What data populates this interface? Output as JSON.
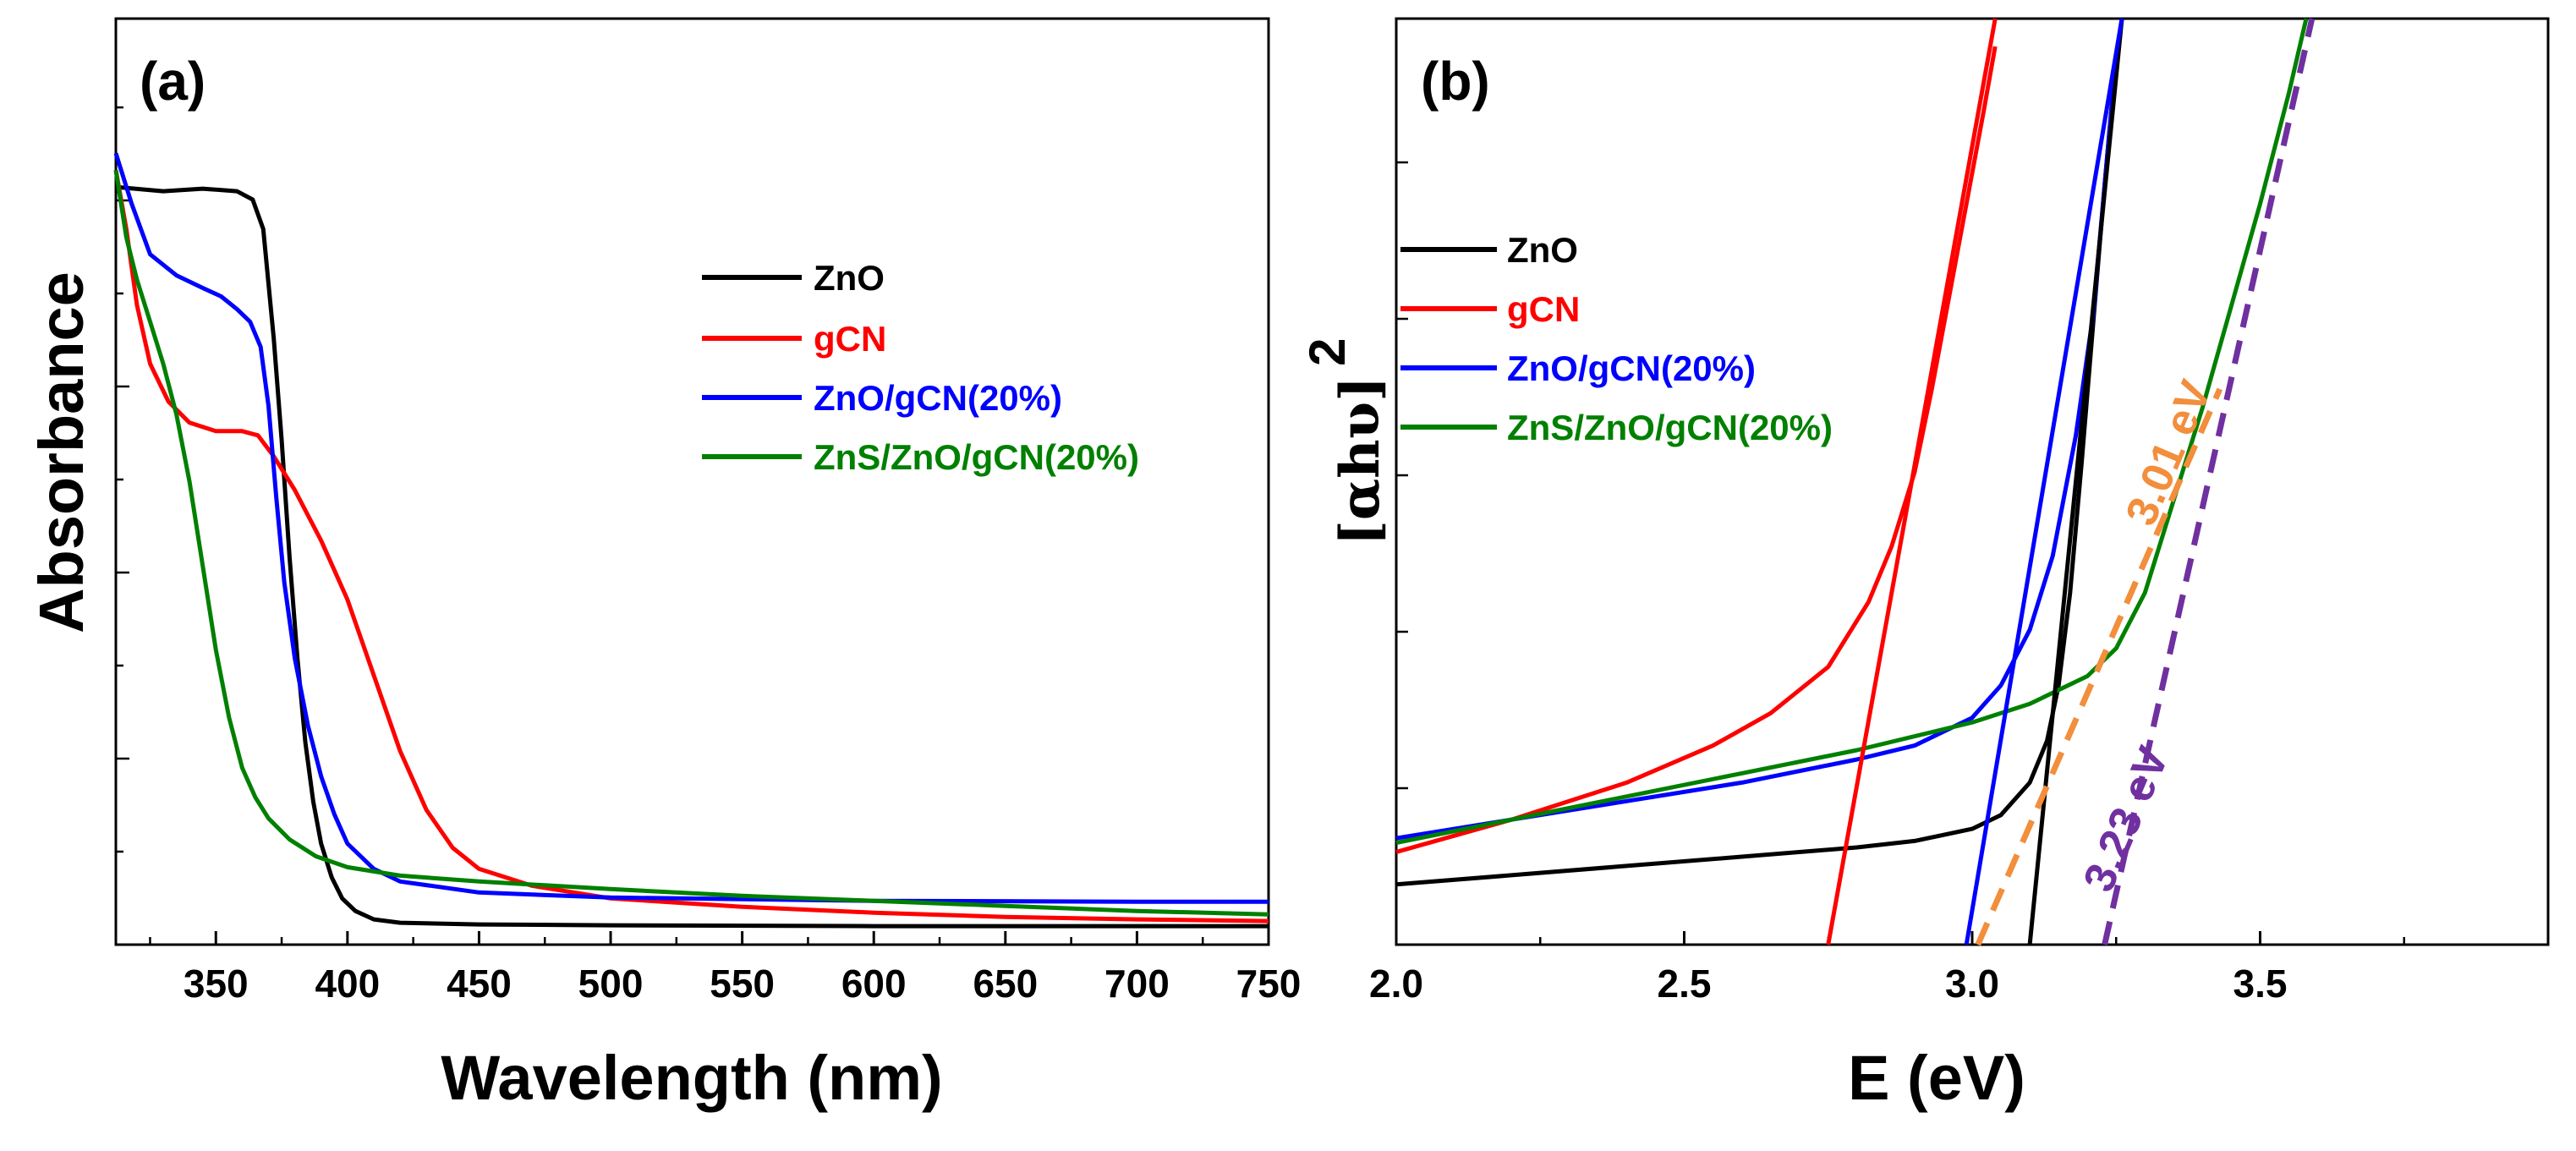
{
  "figure": {
    "panels": [
      "(a)",
      "(b)"
    ]
  },
  "chart_data": [
    {
      "type": "line",
      "panel_label": "(a)",
      "xlabel": "Wavelength (nm)",
      "ylabel": "Absorbance",
      "xlim": [
        312,
        750
      ],
      "ylim": [
        0,
        1.1
      ],
      "xticks": [
        "350",
        "400",
        "450",
        "500",
        "550",
        "600",
        "650",
        "700",
        "750"
      ],
      "yticks_labeled": false,
      "legend_position": "center-right",
      "series": [
        {
          "name": "ZnO",
          "color": "#000000",
          "points": [
            [
              312,
              0.9
            ],
            [
              330,
              0.895
            ],
            [
              345,
              0.898
            ],
            [
              358,
              0.895
            ],
            [
              364,
              0.885
            ],
            [
              368,
              0.85
            ],
            [
              372,
              0.72
            ],
            [
              375,
              0.6
            ],
            [
              378,
              0.46
            ],
            [
              381,
              0.34
            ],
            [
              384,
              0.24
            ],
            [
              387,
              0.17
            ],
            [
              390,
              0.12
            ],
            [
              394,
              0.08
            ],
            [
              398,
              0.055
            ],
            [
              403,
              0.04
            ],
            [
              410,
              0.03
            ],
            [
              420,
              0.026
            ],
            [
              450,
              0.024
            ],
            [
              500,
              0.023
            ],
            [
              600,
              0.022
            ],
            [
              750,
              0.022
            ]
          ]
        },
        {
          "name": "gCN",
          "color": "#ff0000",
          "points": [
            [
              312,
              0.92
            ],
            [
              316,
              0.85
            ],
            [
              320,
              0.76
            ],
            [
              325,
              0.69
            ],
            [
              332,
              0.645
            ],
            [
              340,
              0.62
            ],
            [
              350,
              0.61
            ],
            [
              360,
              0.61
            ],
            [
              366,
              0.605
            ],
            [
              372,
              0.58
            ],
            [
              380,
              0.54
            ],
            [
              390,
              0.48
            ],
            [
              400,
              0.41
            ],
            [
              410,
              0.32
            ],
            [
              420,
              0.23
            ],
            [
              430,
              0.16
            ],
            [
              440,
              0.115
            ],
            [
              450,
              0.09
            ],
            [
              470,
              0.07
            ],
            [
              500,
              0.055
            ],
            [
              550,
              0.045
            ],
            [
              600,
              0.038
            ],
            [
              650,
              0.033
            ],
            [
              700,
              0.03
            ],
            [
              750,
              0.028
            ]
          ]
        },
        {
          "name": "ZnO/gCN(20%)",
          "color": "#0000ff",
          "points": [
            [
              312,
              0.94
            ],
            [
              318,
              0.88
            ],
            [
              325,
              0.82
            ],
            [
              335,
              0.795
            ],
            [
              345,
              0.78
            ],
            [
              352,
              0.77
            ],
            [
              358,
              0.755
            ],
            [
              363,
              0.74
            ],
            [
              367,
              0.71
            ],
            [
              370,
              0.64
            ],
            [
              373,
              0.53
            ],
            [
              376,
              0.43
            ],
            [
              380,
              0.34
            ],
            [
              385,
              0.26
            ],
            [
              390,
              0.2
            ],
            [
              395,
              0.155
            ],
            [
              400,
              0.12
            ],
            [
              410,
              0.09
            ],
            [
              420,
              0.075
            ],
            [
              450,
              0.062
            ],
            [
              500,
              0.056
            ],
            [
              600,
              0.052
            ],
            [
              700,
              0.051
            ],
            [
              750,
              0.051
            ]
          ]
        },
        {
          "name": "ZnS/ZnO/gCN(20%)",
          "color": "#008000",
          "points": [
            [
              312,
              0.92
            ],
            [
              316,
              0.84
            ],
            [
              320,
              0.79
            ],
            [
              325,
              0.74
            ],
            [
              330,
              0.69
            ],
            [
              335,
              0.63
            ],
            [
              340,
              0.55
            ],
            [
              345,
              0.45
            ],
            [
              350,
              0.35
            ],
            [
              355,
              0.27
            ],
            [
              360,
              0.21
            ],
            [
              365,
              0.175
            ],
            [
              370,
              0.15
            ],
            [
              378,
              0.125
            ],
            [
              388,
              0.105
            ],
            [
              400,
              0.092
            ],
            [
              420,
              0.082
            ],
            [
              450,
              0.075
            ],
            [
              500,
              0.066
            ],
            [
              550,
              0.058
            ],
            [
              600,
              0.052
            ],
            [
              650,
              0.046
            ],
            [
              700,
              0.04
            ],
            [
              750,
              0.036
            ]
          ]
        }
      ]
    },
    {
      "type": "line",
      "panel_label": "(b)",
      "xlabel": "E (eV)",
      "ylabel": "[αhυ]",
      "ylabel_superscript": "2",
      "xlim": [
        2.0,
        4.0
      ],
      "ylim": [
        0,
        1.0
      ],
      "xticks": [
        "2.0",
        "2.5",
        "3.0",
        "3.5"
      ],
      "yticks_labeled": false,
      "legend_position": "top-left",
      "series": [
        {
          "name": "ZnO",
          "color": "#000000",
          "points": [
            [
              2.0,
              0.065
            ],
            [
              2.2,
              0.075
            ],
            [
              2.4,
              0.085
            ],
            [
              2.6,
              0.095
            ],
            [
              2.8,
              0.105
            ],
            [
              2.9,
              0.112
            ],
            [
              3.0,
              0.125
            ],
            [
              3.05,
              0.14
            ],
            [
              3.1,
              0.175
            ],
            [
              3.13,
              0.22
            ],
            [
              3.15,
              0.28
            ],
            [
              3.17,
              0.38
            ],
            [
              3.19,
              0.52
            ],
            [
              3.21,
              0.67
            ],
            [
              3.23,
              0.82
            ],
            [
              3.25,
              0.96
            ],
            [
              3.26,
              1.0
            ]
          ]
        },
        {
          "name": "gCN",
          "color": "#ff0000",
          "points": [
            [
              2.0,
              0.1
            ],
            [
              2.2,
              0.135
            ],
            [
              2.4,
              0.175
            ],
            [
              2.55,
              0.215
            ],
            [
              2.65,
              0.25
            ],
            [
              2.75,
              0.3
            ],
            [
              2.82,
              0.37
            ],
            [
              2.86,
              0.43
            ],
            [
              2.9,
              0.51
            ],
            [
              2.93,
              0.6
            ],
            [
              2.96,
              0.7
            ],
            [
              2.99,
              0.8
            ],
            [
              3.02,
              0.9
            ],
            [
              3.04,
              0.97
            ]
          ]
        },
        {
          "name": "ZnO/gCN(20%)",
          "color": "#0000ff",
          "points": [
            [
              2.0,
              0.115
            ],
            [
              2.2,
              0.135
            ],
            [
              2.4,
              0.155
            ],
            [
              2.6,
              0.175
            ],
            [
              2.8,
              0.2
            ],
            [
              2.9,
              0.215
            ],
            [
              3.0,
              0.245
            ],
            [
              3.05,
              0.28
            ],
            [
              3.1,
              0.34
            ],
            [
              3.14,
              0.42
            ],
            [
              3.18,
              0.55
            ],
            [
              3.21,
              0.68
            ],
            [
              3.23,
              0.82
            ],
            [
              3.25,
              0.96
            ],
            [
              3.26,
              1.0
            ]
          ]
        },
        {
          "name": "ZnS/ZnO/gCN(20%)",
          "color": "#008000",
          "points": [
            [
              2.0,
              0.11
            ],
            [
              2.2,
              0.135
            ],
            [
              2.4,
              0.16
            ],
            [
              2.6,
              0.185
            ],
            [
              2.8,
              0.21
            ],
            [
              3.0,
              0.24
            ],
            [
              3.1,
              0.26
            ],
            [
              3.2,
              0.29
            ],
            [
              3.25,
              0.32
            ],
            [
              3.3,
              0.38
            ],
            [
              3.35,
              0.48
            ],
            [
              3.4,
              0.58
            ],
            [
              3.45,
              0.69
            ],
            [
              3.5,
              0.8
            ],
            [
              3.55,
              0.92
            ],
            [
              3.58,
              1.0
            ]
          ]
        }
      ],
      "fit_lines": [
        {
          "color": "#ff0000",
          "style": "solid",
          "x0": 2.75,
          "y0": 0.0,
          "x1": 3.04,
          "y1": 1.0
        },
        {
          "color": "#000000",
          "style": "solid",
          "x0": 3.1,
          "y0": 0.0,
          "x1": 3.26,
          "y1": 1.0
        },
        {
          "color": "#0000ff",
          "style": "solid",
          "x0": 2.99,
          "y0": 0.0,
          "x1": 3.26,
          "y1": 1.0
        },
        {
          "color": "#f28e3c",
          "style": "dashed",
          "x0": 3.01,
          "y0": 0.0,
          "x1": 3.43,
          "y1": 0.6
        },
        {
          "color": "#7030a0",
          "style": "dashed",
          "x0": 3.23,
          "y0": 0.0,
          "x1": 3.59,
          "y1": 1.0
        }
      ],
      "annotations": [
        {
          "text": "3.01 eV",
          "color": "#f28e3c"
        },
        {
          "text": "3.23 eV",
          "color": "#7030a0"
        }
      ]
    }
  ]
}
